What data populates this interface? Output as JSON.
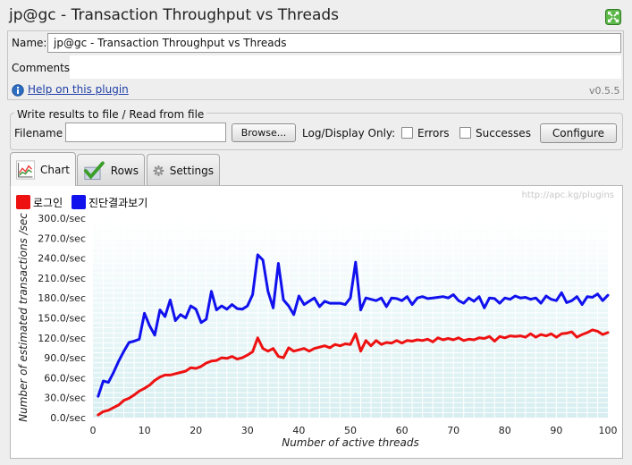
{
  "window": {
    "title": "jp@gc - Transaction Throughput vs Threads",
    "expand_icon": "expand-icon"
  },
  "form": {
    "name_label": "Name:",
    "name_value": "jp@gc - Transaction Throughput vs Threads",
    "comments_label": "Comments:",
    "comments_value": "",
    "help_label": "Help on this plugin",
    "help_icon": "info-icon",
    "version": "v0.5.5"
  },
  "file_panel": {
    "title": "Write results to file / Read from file",
    "filename_label": "Filename",
    "filename_value": "",
    "browse_label": "Browse...",
    "log_display_label": "Log/Display Only:",
    "errors_label": "Errors",
    "errors_checked": false,
    "successes_label": "Successes",
    "successes_checked": false,
    "configure_label": "Configure"
  },
  "tabs": [
    {
      "label": "Chart",
      "icon": "line-chart-icon",
      "active": true
    },
    {
      "label": "Rows",
      "icon": "checkmark-icon",
      "active": false
    },
    {
      "label": "Settings",
      "icon": "gear-icon",
      "active": false
    }
  ],
  "colors": {
    "series_red": "#ee1111",
    "series_blue": "#1111ee",
    "plot_bg_top": "#ffffff",
    "plot_bg_bottom": "#d6eef0",
    "grid": "#ffffff"
  },
  "chart_data": {
    "type": "line",
    "watermark": "http://apc.kg/plugins",
    "xlabel": "Number of active threads",
    "ylabel": "Number of estimated transactions /sec",
    "xlim": [
      0,
      100
    ],
    "ylim": [
      0,
      300
    ],
    "x_ticks": [
      "0",
      "10",
      "20",
      "30",
      "40",
      "50",
      "60",
      "70",
      "80",
      "90",
      "100"
    ],
    "y_ticks": [
      "0.0/sec",
      "30.0/sec",
      "60.0/sec",
      "90.0/sec",
      "120.0/sec",
      "150.0/sec",
      "180.0/sec",
      "210.0/sec",
      "240.0/sec",
      "270.0/sec",
      "300.0/sec"
    ],
    "grid": true,
    "legend_position": "top-left",
    "series": [
      {
        "name": "로그인",
        "color": "#ee1111",
        "points": [
          [
            1,
            4
          ],
          [
            2,
            9
          ],
          [
            3,
            11
          ],
          [
            4,
            15
          ],
          [
            5,
            19
          ],
          [
            6,
            26
          ],
          [
            7,
            29
          ],
          [
            8,
            34
          ],
          [
            9,
            40
          ],
          [
            10,
            44
          ],
          [
            11,
            49
          ],
          [
            12,
            56
          ],
          [
            13,
            61
          ],
          [
            14,
            64
          ],
          [
            15,
            64
          ],
          [
            16,
            66
          ],
          [
            17,
            68
          ],
          [
            18,
            70
          ],
          [
            19,
            75
          ],
          [
            20,
            74
          ],
          [
            21,
            77
          ],
          [
            22,
            82
          ],
          [
            23,
            85
          ],
          [
            24,
            86
          ],
          [
            25,
            90
          ],
          [
            26,
            89
          ],
          [
            27,
            92
          ],
          [
            28,
            88
          ],
          [
            29,
            90
          ],
          [
            30,
            94
          ],
          [
            31,
            99
          ],
          [
            32,
            120
          ],
          [
            33,
            104
          ],
          [
            34,
            100
          ],
          [
            35,
            104
          ],
          [
            36,
            92
          ],
          [
            37,
            90
          ],
          [
            38,
            105
          ],
          [
            39,
            100
          ],
          [
            40,
            102
          ],
          [
            41,
            104
          ],
          [
            42,
            100
          ],
          [
            43,
            104
          ],
          [
            44,
            106
          ],
          [
            45,
            108
          ],
          [
            46,
            105
          ],
          [
            47,
            110
          ],
          [
            48,
            108
          ],
          [
            49,
            111
          ],
          [
            50,
            110
          ],
          [
            51,
            126
          ],
          [
            52,
            100
          ],
          [
            53,
            116
          ],
          [
            54,
            108
          ],
          [
            55,
            116
          ],
          [
            56,
            110
          ],
          [
            57,
            113
          ],
          [
            58,
            112
          ],
          [
            59,
            116
          ],
          [
            60,
            112
          ],
          [
            61,
            116
          ],
          [
            62,
            115
          ],
          [
            63,
            117
          ],
          [
            64,
            116
          ],
          [
            65,
            118
          ],
          [
            66,
            114
          ],
          [
            67,
            120
          ],
          [
            68,
            117
          ],
          [
            69,
            119
          ],
          [
            70,
            117
          ],
          [
            71,
            120
          ],
          [
            72,
            116
          ],
          [
            73,
            118
          ],
          [
            74,
            117
          ],
          [
            75,
            120
          ],
          [
            76,
            119
          ],
          [
            77,
            122
          ],
          [
            78,
            115
          ],
          [
            79,
            122
          ],
          [
            80,
            120
          ],
          [
            81,
            123
          ],
          [
            82,
            122
          ],
          [
            83,
            123
          ],
          [
            84,
            121
          ],
          [
            85,
            126
          ],
          [
            86,
            121
          ],
          [
            87,
            125
          ],
          [
            88,
            123
          ],
          [
            89,
            126
          ],
          [
            90,
            121
          ],
          [
            91,
            126
          ],
          [
            92,
            127
          ],
          [
            93,
            129
          ],
          [
            94,
            121
          ],
          [
            95,
            125
          ],
          [
            96,
            128
          ],
          [
            97,
            132
          ],
          [
            98,
            130
          ],
          [
            99,
            125
          ],
          [
            100,
            128
          ]
        ]
      },
      {
        "name": "진단결과보기",
        "color": "#1111ee",
        "points": [
          [
            1,
            32
          ],
          [
            2,
            55
          ],
          [
            3,
            53
          ],
          [
            4,
            68
          ],
          [
            5,
            85
          ],
          [
            6,
            100
          ],
          [
            7,
            113
          ],
          [
            8,
            115
          ],
          [
            9,
            118
          ],
          [
            10,
            157
          ],
          [
            11,
            138
          ],
          [
            12,
            124
          ],
          [
            13,
            162
          ],
          [
            14,
            152
          ],
          [
            15,
            177
          ],
          [
            16,
            146
          ],
          [
            17,
            155
          ],
          [
            18,
            150
          ],
          [
            19,
            168
          ],
          [
            20,
            163
          ],
          [
            21,
            143
          ],
          [
            22,
            148
          ],
          [
            23,
            190
          ],
          [
            24,
            162
          ],
          [
            25,
            168
          ],
          [
            26,
            163
          ],
          [
            27,
            170
          ],
          [
            28,
            164
          ],
          [
            29,
            163
          ],
          [
            30,
            168
          ],
          [
            31,
            185
          ],
          [
            32,
            245
          ],
          [
            33,
            237
          ],
          [
            34,
            190
          ],
          [
            35,
            165
          ],
          [
            36,
            232
          ],
          [
            37,
            177
          ],
          [
            38,
            168
          ],
          [
            39,
            155
          ],
          [
            40,
            183
          ],
          [
            41,
            170
          ],
          [
            42,
            175
          ],
          [
            43,
            180
          ],
          [
            44,
            167
          ],
          [
            45,
            175
          ],
          [
            46,
            172
          ],
          [
            47,
            172
          ],
          [
            48,
            172
          ],
          [
            49,
            170
          ],
          [
            50,
            180
          ],
          [
            51,
            234
          ],
          [
            52,
            162
          ],
          [
            53,
            180
          ],
          [
            54,
            178
          ],
          [
            55,
            176
          ],
          [
            56,
            180
          ],
          [
            57,
            167
          ],
          [
            58,
            180
          ],
          [
            59,
            179
          ],
          [
            60,
            176
          ],
          [
            61,
            182
          ],
          [
            62,
            170
          ],
          [
            63,
            180
          ],
          [
            64,
            182
          ],
          [
            65,
            179
          ],
          [
            66,
            180
          ],
          [
            67,
            181
          ],
          [
            68,
            182
          ],
          [
            69,
            180
          ],
          [
            70,
            185
          ],
          [
            71,
            176
          ],
          [
            72,
            172
          ],
          [
            73,
            180
          ],
          [
            74,
            175
          ],
          [
            75,
            182
          ],
          [
            76,
            165
          ],
          [
            77,
            180
          ],
          [
            78,
            179
          ],
          [
            79,
            172
          ],
          [
            80,
            180
          ],
          [
            81,
            178
          ],
          [
            82,
            183
          ],
          [
            83,
            180
          ],
          [
            84,
            181
          ],
          [
            85,
            178
          ],
          [
            86,
            180
          ],
          [
            87,
            172
          ],
          [
            88,
            183
          ],
          [
            89,
            178
          ],
          [
            90,
            176
          ],
          [
            91,
            188
          ],
          [
            92,
            173
          ],
          [
            93,
            176
          ],
          [
            94,
            182
          ],
          [
            95,
            170
          ],
          [
            96,
            182
          ],
          [
            97,
            181
          ],
          [
            98,
            186
          ],
          [
            99,
            176
          ],
          [
            100,
            184
          ]
        ]
      }
    ]
  }
}
